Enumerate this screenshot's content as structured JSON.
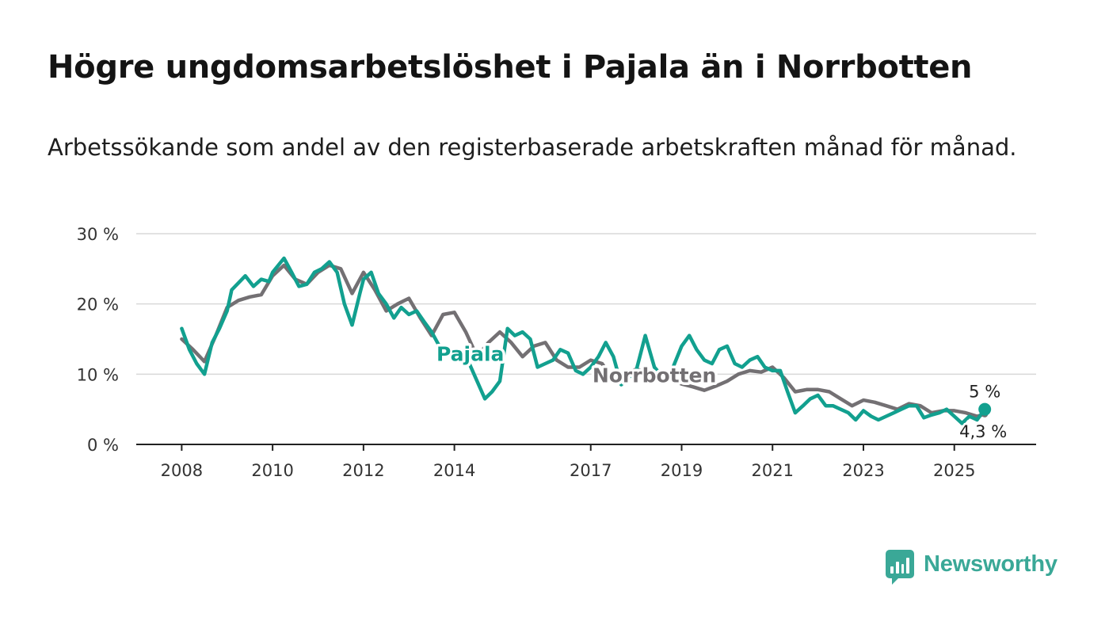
{
  "title": "Högre ungdomsarbetslöshet i Pajala än i Norrbotten",
  "subtitle": "Arbetssökande som andel av den registerbaserade arbetskraften månad för månad.",
  "logo": {
    "text": "Newsworthy",
    "icon": "chart-bars-icon",
    "color": "#3aa897"
  },
  "chart_data": {
    "type": "line",
    "title": "Högre ungdomsarbetslöshet i Pajala än i Norrbotten",
    "xlabel": "",
    "ylabel": "",
    "ylim": [
      0,
      30
    ],
    "xlim": [
      2007.0,
      2026.8
    ],
    "y_ticks": [
      {
        "value": 0,
        "label": "0 %"
      },
      {
        "value": 10,
        "label": "10 %"
      },
      {
        "value": 20,
        "label": "20 %"
      },
      {
        "value": 30,
        "label": "30 %"
      }
    ],
    "x_ticks": [
      {
        "value": 2008,
        "label": "2008"
      },
      {
        "value": 2010,
        "label": "2010"
      },
      {
        "value": 2012,
        "label": "2012"
      },
      {
        "value": 2014,
        "label": "2014"
      },
      {
        "value": 2017,
        "label": "2017"
      },
      {
        "value": 2019,
        "label": "2019"
      },
      {
        "value": 2021,
        "label": "2021"
      },
      {
        "value": 2023,
        "label": "2023"
      },
      {
        "value": 2025,
        "label": "2025"
      }
    ],
    "grid": true,
    "series": [
      {
        "name": "Norrbotten",
        "color": "#737073",
        "label_at": 2018.4,
        "end_value": 4.3,
        "end_label": "4,3 %",
        "points": [
          [
            2008.0,
            15.0
          ],
          [
            2008.25,
            13.5
          ],
          [
            2008.5,
            11.8
          ],
          [
            2008.75,
            15.5
          ],
          [
            2009.0,
            19.5
          ],
          [
            2009.25,
            20.5
          ],
          [
            2009.5,
            21.0
          ],
          [
            2009.75,
            21.3
          ],
          [
            2010.0,
            24.0
          ],
          [
            2010.25,
            25.5
          ],
          [
            2010.5,
            23.5
          ],
          [
            2010.75,
            22.8
          ],
          [
            2011.0,
            24.5
          ],
          [
            2011.25,
            25.5
          ],
          [
            2011.5,
            25.0
          ],
          [
            2011.75,
            21.5
          ],
          [
            2012.0,
            24.5
          ],
          [
            2012.25,
            22.0
          ],
          [
            2012.5,
            19.0
          ],
          [
            2012.75,
            20.0
          ],
          [
            2013.0,
            20.8
          ],
          [
            2013.25,
            18.0
          ],
          [
            2013.5,
            15.5
          ],
          [
            2013.75,
            18.5
          ],
          [
            2014.0,
            18.8
          ],
          [
            2014.25,
            16.0
          ],
          [
            2014.5,
            12.5
          ],
          [
            2014.75,
            14.5
          ],
          [
            2015.0,
            16.0
          ],
          [
            2015.25,
            14.5
          ],
          [
            2015.5,
            12.5
          ],
          [
            2015.75,
            14.0
          ],
          [
            2016.0,
            14.5
          ],
          [
            2016.25,
            12.0
          ],
          [
            2016.5,
            11.0
          ],
          [
            2016.75,
            11.0
          ],
          [
            2017.0,
            12.0
          ],
          [
            2017.25,
            11.5
          ],
          [
            2017.5,
            9.0
          ],
          [
            2017.75,
            10.0
          ],
          [
            2018.0,
            10.7
          ],
          [
            2018.25,
            10.3
          ],
          [
            2018.5,
            9.8
          ],
          [
            2018.75,
            9.2
          ],
          [
            2019.0,
            8.6
          ],
          [
            2019.25,
            8.2
          ],
          [
            2019.5,
            7.7
          ],
          [
            2019.75,
            8.3
          ],
          [
            2020.0,
            9.0
          ],
          [
            2020.25,
            10.0
          ],
          [
            2020.5,
            10.5
          ],
          [
            2020.75,
            10.3
          ],
          [
            2021.0,
            11.0
          ],
          [
            2021.25,
            9.5
          ],
          [
            2021.5,
            7.5
          ],
          [
            2021.75,
            7.8
          ],
          [
            2022.0,
            7.8
          ],
          [
            2022.25,
            7.5
          ],
          [
            2022.5,
            6.5
          ],
          [
            2022.75,
            5.5
          ],
          [
            2023.0,
            6.3
          ],
          [
            2023.25,
            6.0
          ],
          [
            2023.5,
            5.5
          ],
          [
            2023.75,
            5.0
          ],
          [
            2024.0,
            5.8
          ],
          [
            2024.25,
            5.5
          ],
          [
            2024.5,
            4.5
          ],
          [
            2024.75,
            4.8
          ],
          [
            2025.0,
            4.8
          ],
          [
            2025.25,
            4.5
          ],
          [
            2025.5,
            4.0
          ],
          [
            2025.67,
            4.3
          ]
        ]
      },
      {
        "name": "Pajala",
        "color": "#12a08f",
        "label_at": 2014.35,
        "end_value": 5,
        "end_label": "5 %",
        "points": [
          [
            2008.0,
            16.5
          ],
          [
            2008.17,
            13.5
          ],
          [
            2008.33,
            11.5
          ],
          [
            2008.5,
            10.0
          ],
          [
            2008.67,
            14.5
          ],
          [
            2008.83,
            16.5
          ],
          [
            2009.0,
            19.0
          ],
          [
            2009.1,
            22.0
          ],
          [
            2009.25,
            23.0
          ],
          [
            2009.4,
            24.0
          ],
          [
            2009.58,
            22.5
          ],
          [
            2009.75,
            23.5
          ],
          [
            2009.92,
            23.2
          ],
          [
            2010.0,
            24.5
          ],
          [
            2010.25,
            26.5
          ],
          [
            2010.42,
            24.5
          ],
          [
            2010.58,
            22.5
          ],
          [
            2010.75,
            22.8
          ],
          [
            2010.92,
            24.5
          ],
          [
            2011.08,
            25.0
          ],
          [
            2011.25,
            26.0
          ],
          [
            2011.42,
            24.5
          ],
          [
            2011.58,
            20.0
          ],
          [
            2011.75,
            17.0
          ],
          [
            2011.92,
            21.5
          ],
          [
            2012.0,
            23.5
          ],
          [
            2012.17,
            24.5
          ],
          [
            2012.33,
            21.5
          ],
          [
            2012.5,
            20.0
          ],
          [
            2012.67,
            18.0
          ],
          [
            2012.83,
            19.5
          ],
          [
            2013.0,
            18.5
          ],
          [
            2013.17,
            19.0
          ],
          [
            2013.33,
            17.5
          ],
          [
            2013.5,
            16.0
          ],
          [
            2013.67,
            14.0
          ],
          [
            2013.83,
            13.0
          ],
          [
            2014.0,
            12.5
          ],
          [
            2014.17,
            12.0
          ],
          [
            2014.33,
            11.5
          ],
          [
            2014.5,
            9.0
          ],
          [
            2014.67,
            6.5
          ],
          [
            2014.83,
            7.5
          ],
          [
            2015.0,
            9.0
          ],
          [
            2015.17,
            16.5
          ],
          [
            2015.33,
            15.5
          ],
          [
            2015.5,
            16.0
          ],
          [
            2015.67,
            15.0
          ],
          [
            2015.83,
            11.0
          ],
          [
            2016.0,
            11.5
          ],
          [
            2016.17,
            12.0
          ],
          [
            2016.33,
            13.5
          ],
          [
            2016.5,
            13.0
          ],
          [
            2016.67,
            10.5
          ],
          [
            2016.83,
            10.0
          ],
          [
            2017.0,
            11.0
          ],
          [
            2017.17,
            12.5
          ],
          [
            2017.33,
            14.5
          ],
          [
            2017.5,
            12.5
          ],
          [
            2017.67,
            8.5
          ],
          [
            2017.83,
            9.5
          ],
          [
            2018.0,
            10.5
          ],
          [
            2018.2,
            15.5
          ],
          [
            2018.4,
            11.0
          ],
          [
            2018.6,
            9.5
          ],
          [
            2018.8,
            10.8
          ],
          [
            2019.0,
            14.0
          ],
          [
            2019.17,
            15.5
          ],
          [
            2019.33,
            13.5
          ],
          [
            2019.5,
            12.0
          ],
          [
            2019.67,
            11.5
          ],
          [
            2019.83,
            13.5
          ],
          [
            2020.0,
            14.0
          ],
          [
            2020.17,
            11.5
          ],
          [
            2020.33,
            11.0
          ],
          [
            2020.5,
            12.0
          ],
          [
            2020.67,
            12.5
          ],
          [
            2020.83,
            11.0
          ],
          [
            2021.0,
            10.5
          ],
          [
            2021.17,
            10.5
          ],
          [
            2021.33,
            7.5
          ],
          [
            2021.5,
            4.5
          ],
          [
            2021.67,
            5.5
          ],
          [
            2021.83,
            6.5
          ],
          [
            2022.0,
            7.0
          ],
          [
            2022.17,
            5.5
          ],
          [
            2022.33,
            5.5
          ],
          [
            2022.5,
            5.0
          ],
          [
            2022.67,
            4.5
          ],
          [
            2022.83,
            3.5
          ],
          [
            2023.0,
            4.8
          ],
          [
            2023.17,
            4.0
          ],
          [
            2023.33,
            3.5
          ],
          [
            2023.5,
            4.0
          ],
          [
            2023.67,
            4.5
          ],
          [
            2023.83,
            5.0
          ],
          [
            2024.0,
            5.5
          ],
          [
            2024.17,
            5.5
          ],
          [
            2024.33,
            3.8
          ],
          [
            2024.5,
            4.2
          ],
          [
            2024.67,
            4.5
          ],
          [
            2024.83,
            5.0
          ],
          [
            2025.0,
            4.0
          ],
          [
            2025.17,
            3.0
          ],
          [
            2025.33,
            4.0
          ],
          [
            2025.5,
            3.5
          ],
          [
            2025.67,
            5.0
          ]
        ]
      }
    ]
  }
}
